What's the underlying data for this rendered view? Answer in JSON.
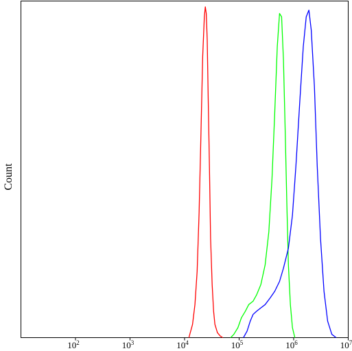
{
  "chart_data": {
    "type": "line",
    "title": "",
    "xlabel": "",
    "ylabel": "Count",
    "x_scale": "log",
    "xlim": [
      10,
      10000000
    ],
    "ylim": [
      0,
      1
    ],
    "grid": false,
    "legend": "none",
    "x_ticks": [
      {
        "value": 100,
        "base": "10",
        "exp": "2"
      },
      {
        "value": 1000,
        "base": "10",
        "exp": "3"
      },
      {
        "value": 10000,
        "base": "10",
        "exp": "4"
      },
      {
        "value": 100000,
        "base": "10",
        "exp": "5"
      },
      {
        "value": 1000000,
        "base": "10",
        "exp": "6"
      },
      {
        "value": 10000000,
        "base": "10",
        "exp": "7"
      }
    ],
    "series": [
      {
        "color": "#ff0000",
        "x": [
          12000,
          14000,
          15500,
          17000,
          18500,
          20000,
          21500,
          23000,
          24000,
          25000,
          26000,
          27000,
          28500,
          30000,
          32000,
          34000,
          36000,
          40000,
          45000,
          50000
        ],
        "y": [
          0,
          0.04,
          0.1,
          0.2,
          0.38,
          0.62,
          0.85,
          0.97,
          1.0,
          0.98,
          0.9,
          0.74,
          0.52,
          0.3,
          0.16,
          0.08,
          0.04,
          0.015,
          0.005,
          0
        ]
      },
      {
        "color": "#00ff00",
        "x": [
          70000,
          80000,
          95000,
          110000,
          130000,
          150000,
          180000,
          210000,
          250000,
          300000,
          350000,
          400000,
          450000,
          500000,
          550000,
          600000,
          650000,
          700000,
          750000,
          800000,
          870000,
          950000,
          1050000
        ],
        "y": [
          0,
          0.01,
          0.03,
          0.06,
          0.08,
          0.1,
          0.11,
          0.13,
          0.16,
          0.22,
          0.32,
          0.48,
          0.68,
          0.88,
          0.98,
          0.97,
          0.84,
          0.62,
          0.4,
          0.22,
          0.1,
          0.03,
          0
        ]
      },
      {
        "color": "#0000ff",
        "x": [
          120000,
          140000,
          160000,
          180000,
          210000,
          250000,
          300000,
          370000,
          450000,
          550000,
          650000,
          800000,
          950000,
          1100000,
          1300000,
          1500000,
          1700000,
          1900000,
          2100000,
          2400000,
          2700000,
          3100000,
          3600000,
          4200000,
          5000000,
          6000000
        ],
        "y": [
          0,
          0.02,
          0.05,
          0.07,
          0.08,
          0.09,
          0.1,
          0.12,
          0.14,
          0.17,
          0.21,
          0.27,
          0.37,
          0.52,
          0.72,
          0.88,
          0.97,
          0.99,
          0.93,
          0.76,
          0.52,
          0.3,
          0.14,
          0.05,
          0.01,
          0
        ]
      }
    ]
  }
}
